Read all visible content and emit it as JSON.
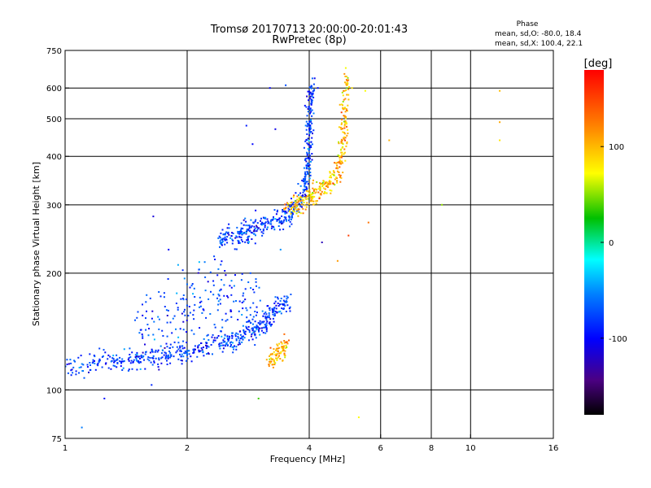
{
  "chart_data": {
    "type": "scatter",
    "title": "Tromsø 20170713 20:00:00-20:01:43",
    "subtitle": "RwPretec (8p)",
    "xlabel": "Frequency [MHz]",
    "ylabel": "Stationary phase Virtual Height [km]",
    "x_scale": "log2",
    "y_scale": "log",
    "xlim": [
      1,
      16
    ],
    "ylim": [
      75,
      750
    ],
    "x_ticks": [
      1,
      2,
      4,
      6,
      8,
      10,
      16
    ],
    "x_tick_labels": [
      "1",
      "2",
      "4",
      "6",
      "8",
      "10",
      "16"
    ],
    "y_ticks": [
      75,
      100,
      200,
      300,
      400,
      500,
      600,
      750
    ],
    "y_tick_labels": [
      "75",
      "100",
      "200",
      "300",
      "400",
      "500",
      "600",
      "750"
    ],
    "grid": true,
    "phase_stats": {
      "title": "Phase",
      "line_o": "mean, sd,O: -80.0, 18.4",
      "line_x": "mean, sd,X: 100.4, 22.1"
    },
    "colorbar": {
      "label": "[deg]",
      "range": [
        -180,
        180
      ],
      "tick_values": [
        100,
        0,
        -100
      ],
      "tick_labels": [
        "100",
        "0",
        "-100"
      ]
    },
    "series": [
      {
        "mode": "O",
        "phase_mean": -80.0,
        "phase_sd": 18.4,
        "trace": [
          [
            1.0,
            113
          ],
          [
            1.2,
            118
          ],
          [
            1.4,
            118
          ],
          [
            1.6,
            120
          ],
          [
            1.8,
            123
          ],
          [
            2.0,
            126
          ],
          [
            2.3,
            130
          ],
          [
            2.6,
            135
          ],
          [
            2.9,
            143
          ],
          [
            3.2,
            150
          ]
        ]
      },
      {
        "mode": "O",
        "phase_mean": -80.0,
        "phase_sd": 18.4,
        "trace": [
          [
            2.4,
            250
          ],
          [
            2.6,
            248
          ],
          [
            2.8,
            255
          ],
          [
            3.0,
            262
          ],
          [
            3.3,
            272
          ],
          [
            3.6,
            285
          ],
          [
            3.8,
            305
          ],
          [
            3.95,
            360
          ],
          [
            4.0,
            430
          ],
          [
            4.02,
            520
          ],
          [
            4.05,
            620
          ]
        ]
      },
      {
        "mode": "X",
        "phase_mean": 100.4,
        "phase_sd": 22.1,
        "trace": [
          [
            3.5,
            290
          ],
          [
            3.8,
            303
          ],
          [
            4.1,
            320
          ],
          [
            4.4,
            335
          ],
          [
            4.7,
            360
          ],
          [
            4.85,
            420
          ],
          [
            4.9,
            500
          ],
          [
            4.93,
            640
          ]
        ]
      },
      {
        "mode": "X",
        "phase_mean": 100.4,
        "phase_sd": 22.1,
        "trace": [
          [
            3.2,
            118
          ],
          [
            3.35,
            125
          ],
          [
            3.5,
            130
          ]
        ]
      },
      {
        "mode": "O",
        "phase_mean": -80.0,
        "phase_sd": 18.4,
        "trace": [
          [
            1.5,
            140
          ],
          [
            1.8,
            150
          ],
          [
            2.1,
            170
          ],
          [
            2.4,
            165
          ],
          [
            2.7,
            160
          ],
          [
            3.0,
            170
          ]
        ]
      },
      {
        "mode": "O",
        "phase_mean": -80.0,
        "phase_sd": 18.4,
        "trace": [
          [
            3.1,
            150
          ],
          [
            3.3,
            162
          ],
          [
            3.55,
            168
          ]
        ]
      }
    ],
    "sparse_points": [
      [
        1.1,
        80
      ],
      [
        1.25,
        95
      ],
      [
        1.6,
        120
      ],
      [
        1.8,
        230
      ],
      [
        1.9,
        210
      ],
      [
        3.0,
        95
      ],
      [
        3.2,
        600
      ],
      [
        3.5,
        610
      ],
      [
        2.8,
        480
      ],
      [
        2.9,
        430
      ],
      [
        3.3,
        470
      ],
      [
        4.05,
        580
      ],
      [
        4.2,
        600
      ],
      [
        5.1,
        600
      ],
      [
        5.3,
        85
      ],
      [
        5.5,
        590
      ],
      [
        6.3,
        440
      ],
      [
        8.5,
        300
      ],
      [
        11.8,
        590
      ],
      [
        11.8,
        490
      ],
      [
        11.8,
        440
      ],
      [
        3.4,
        230
      ],
      [
        4.3,
        240
      ],
      [
        4.7,
        215
      ],
      [
        5.6,
        270
      ],
      [
        5.0,
        250
      ],
      [
        2.95,
        290
      ],
      [
        2.4,
        175
      ],
      [
        1.65,
        280
      ]
    ]
  }
}
